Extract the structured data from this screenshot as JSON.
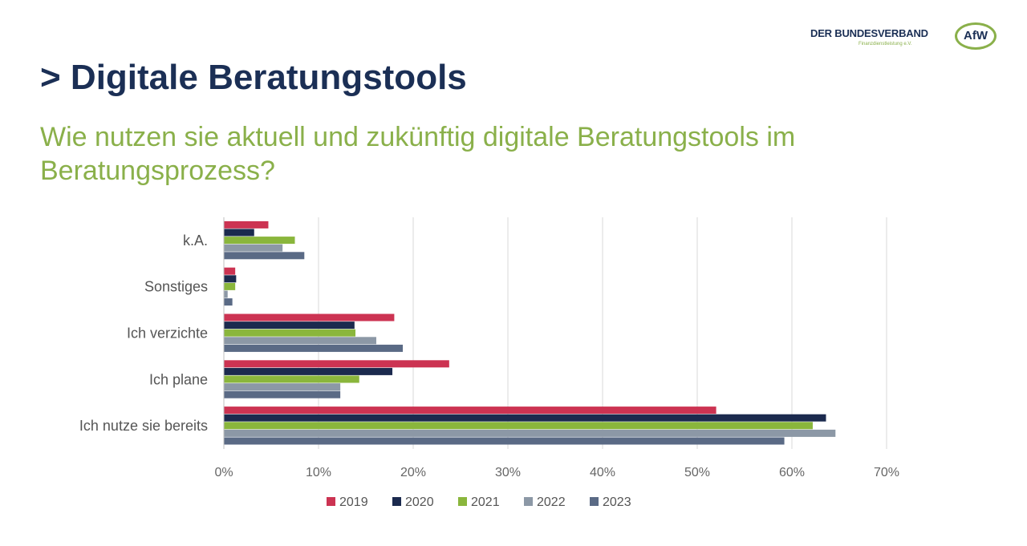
{
  "logo": {
    "text": "DER BUNDESVERBAND",
    "sub": "Finanzdienstleistung e.V.",
    "mark": "AfW"
  },
  "title": "> Digitale Beratungstools",
  "subtitle": "Wie nutzen sie aktuell und zukünftig digitale Beratungstools im Beratungsprozess?",
  "colors": {
    "2019": "#cc3352",
    "2020": "#1b2a4e",
    "2021": "#8ab63c",
    "2022": "#8c98a6",
    "2023": "#5a6a85"
  },
  "chart_data": {
    "type": "bar",
    "orientation": "horizontal",
    "categories": [
      "k.A.",
      "Sonstiges",
      "Ich verzichte",
      "Ich plane",
      "Ich nutze sie bereits"
    ],
    "series": [
      {
        "name": "2019",
        "values": [
          4.7,
          1.2,
          18.0,
          23.8,
          52.0
        ]
      },
      {
        "name": "2020",
        "values": [
          3.2,
          1.3,
          13.8,
          17.8,
          63.6
        ]
      },
      {
        "name": "2021",
        "values": [
          7.5,
          1.2,
          13.9,
          14.3,
          62.2
        ]
      },
      {
        "name": "2022",
        "values": [
          6.2,
          0.4,
          16.1,
          12.3,
          64.6
        ]
      },
      {
        "name": "2023",
        "values": [
          8.5,
          0.9,
          18.9,
          12.3,
          59.2
        ]
      }
    ],
    "xlim": [
      0,
      70
    ],
    "xticks": [
      "0%",
      "10%",
      "20%",
      "30%",
      "40%",
      "50%",
      "60%",
      "70%"
    ],
    "grid": true,
    "legend_position": "bottom"
  }
}
